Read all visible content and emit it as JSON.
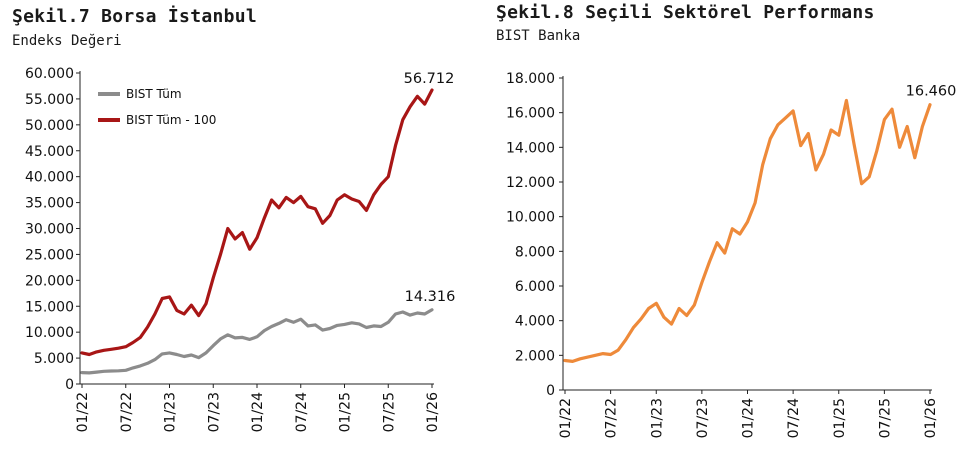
{
  "left": {
    "title": "Şekil.7 Borsa İstanbul",
    "subtitle": "Endeks Değeri"
  },
  "right": {
    "title": "Şekil.8 Seçili Sektörel Performans",
    "subtitle": "BIST Banka"
  },
  "chart_data": [
    {
      "type": "line",
      "title": "Şekil.7 Borsa İstanbul",
      "subtitle": "Endeks Değeri",
      "ylim": [
        0,
        60000
      ],
      "yticks": [
        "60.000",
        "55.000",
        "50.000",
        "45.000",
        "40.000",
        "35.000",
        "30.000",
        "25.000",
        "20.000",
        "15.000",
        "10.000",
        "5.000",
        "0"
      ],
      "xticks": [
        "01/22",
        "07/22",
        "01/23",
        "07/23",
        "01/24",
        "07/24",
        "01/25",
        "07/25",
        "01/26"
      ],
      "legend_position": "top-left",
      "grid": false,
      "annotations": [
        {
          "text": "56.712",
          "series": "BIST Tüm - 100"
        },
        {
          "text": "14.316",
          "series": "BIST Tüm"
        }
      ],
      "series": [
        {
          "name": "BIST Tüm",
          "color": "#8c8c8c",
          "points": [
            [
              "2022-01",
              2200
            ],
            [
              "2022-02",
              2150
            ],
            [
              "2022-03",
              2300
            ],
            [
              "2022-04",
              2450
            ],
            [
              "2022-05",
              2500
            ],
            [
              "2022-06",
              2550
            ],
            [
              "2022-07",
              2650
            ],
            [
              "2022-08",
              3100
            ],
            [
              "2022-09",
              3500
            ],
            [
              "2022-10",
              4000
            ],
            [
              "2022-11",
              4700
            ],
            [
              "2022-12",
              5800
            ],
            [
              "2023-01",
              6000
            ],
            [
              "2023-02",
              5700
            ],
            [
              "2023-03",
              5300
            ],
            [
              "2023-04",
              5600
            ],
            [
              "2023-05",
              5100
            ],
            [
              "2023-06",
              6000
            ],
            [
              "2023-07",
              7400
            ],
            [
              "2023-08",
              8700
            ],
            [
              "2023-09",
              9500
            ],
            [
              "2023-10",
              8900
            ],
            [
              "2023-11",
              9000
            ],
            [
              "2023-12",
              8600
            ],
            [
              "2024-01",
              9100
            ],
            [
              "2024-02",
              10300
            ],
            [
              "2024-03",
              11100
            ],
            [
              "2024-04",
              11700
            ],
            [
              "2024-05",
              12400
            ],
            [
              "2024-06",
              11900
            ],
            [
              "2024-07",
              12500
            ],
            [
              "2024-08",
              11200
            ],
            [
              "2024-09",
              11400
            ],
            [
              "2024-10",
              10400
            ],
            [
              "2024-11",
              10700
            ],
            [
              "2024-12",
              11300
            ],
            [
              "2025-01",
              11500
            ],
            [
              "2025-02",
              11800
            ],
            [
              "2025-03",
              11600
            ],
            [
              "2025-04",
              10900
            ],
            [
              "2025-05",
              11200
            ],
            [
              "2025-06",
              11100
            ],
            [
              "2025-07",
              11900
            ],
            [
              "2025-08",
              13500
            ],
            [
              "2025-09",
              13900
            ],
            [
              "2025-10",
              13300
            ],
            [
              "2025-11",
              13700
            ],
            [
              "2025-12",
              13500
            ],
            [
              "2026-01",
              14316
            ]
          ]
        },
        {
          "name": "BIST Tüm - 100",
          "color": "#a81616",
          "points": [
            [
              "2022-01",
              6000
            ],
            [
              "2022-02",
              5700
            ],
            [
              "2022-03",
              6200
            ],
            [
              "2022-04",
              6500
            ],
            [
              "2022-05",
              6700
            ],
            [
              "2022-06",
              6900
            ],
            [
              "2022-07",
              7200
            ],
            [
              "2022-08",
              8000
            ],
            [
              "2022-09",
              9000
            ],
            [
              "2022-10",
              11000
            ],
            [
              "2022-11",
              13500
            ],
            [
              "2022-12",
              16500
            ],
            [
              "2023-01",
              16800
            ],
            [
              "2023-02",
              14200
            ],
            [
              "2023-03",
              13500
            ],
            [
              "2023-04",
              15200
            ],
            [
              "2023-05",
              13200
            ],
            [
              "2023-06",
              15500
            ],
            [
              "2023-07",
              20500
            ],
            [
              "2023-08",
              25000
            ],
            [
              "2023-09",
              30000
            ],
            [
              "2023-10",
              28000
            ],
            [
              "2023-11",
              29200
            ],
            [
              "2023-12",
              26000
            ],
            [
              "2024-01",
              28200
            ],
            [
              "2024-02",
              32000
            ],
            [
              "2024-03",
              35500
            ],
            [
              "2024-04",
              34000
            ],
            [
              "2024-05",
              36000
            ],
            [
              "2024-06",
              35000
            ],
            [
              "2024-07",
              36200
            ],
            [
              "2024-08",
              34200
            ],
            [
              "2024-09",
              33800
            ],
            [
              "2024-10",
              31000
            ],
            [
              "2024-11",
              32500
            ],
            [
              "2024-12",
              35500
            ],
            [
              "2025-01",
              36500
            ],
            [
              "2025-02",
              35700
            ],
            [
              "2025-03",
              35200
            ],
            [
              "2025-04",
              33500
            ],
            [
              "2025-05",
              36500
            ],
            [
              "2025-06",
              38500
            ],
            [
              "2025-07",
              40000
            ],
            [
              "2025-08",
              46000
            ],
            [
              "2025-09",
              51000
            ],
            [
              "2025-10",
              53500
            ],
            [
              "2025-11",
              55500
            ],
            [
              "2025-12",
              54000
            ],
            [
              "2026-01",
              56712
            ]
          ]
        }
      ]
    },
    {
      "type": "line",
      "title": "Şekil.8 Seçili Sektörel Performans",
      "subtitle": "BIST Banka",
      "ylim": [
        0,
        18000
      ],
      "yticks": [
        "18.000",
        "16.000",
        "14.000",
        "12.000",
        "10.000",
        "8.000",
        "6.000",
        "4.000",
        "2.000",
        "0"
      ],
      "xticks": [
        "01/22",
        "07/22",
        "01/23",
        "07/23",
        "01/24",
        "07/24",
        "01/25",
        "07/25",
        "01/26"
      ],
      "grid": false,
      "annotations": [
        {
          "text": "16.460",
          "series": "BIST Banka"
        }
      ],
      "series": [
        {
          "name": "BIST Banka",
          "color": "#ee8a3a",
          "points": [
            [
              "2022-01",
              1700
            ],
            [
              "2022-02",
              1650
            ],
            [
              "2022-03",
              1800
            ],
            [
              "2022-04",
              1900
            ],
            [
              "2022-05",
              2000
            ],
            [
              "2022-06",
              2100
            ],
            [
              "2022-07",
              2050
            ],
            [
              "2022-08",
              2300
            ],
            [
              "2022-09",
              2900
            ],
            [
              "2022-10",
              3600
            ],
            [
              "2022-11",
              4100
            ],
            [
              "2022-12",
              4700
            ],
            [
              "2023-01",
              5000
            ],
            [
              "2023-02",
              4200
            ],
            [
              "2023-03",
              3800
            ],
            [
              "2023-04",
              4700
            ],
            [
              "2023-05",
              4300
            ],
            [
              "2023-06",
              4900
            ],
            [
              "2023-07",
              6200
            ],
            [
              "2023-08",
              7400
            ],
            [
              "2023-09",
              8500
            ],
            [
              "2023-10",
              7900
            ],
            [
              "2023-11",
              9300
            ],
            [
              "2023-12",
              9000
            ],
            [
              "2024-01",
              9700
            ],
            [
              "2024-02",
              10800
            ],
            [
              "2024-03",
              13000
            ],
            [
              "2024-04",
              14500
            ],
            [
              "2024-05",
              15300
            ],
            [
              "2024-06",
              15700
            ],
            [
              "2024-07",
              16100
            ],
            [
              "2024-08",
              14100
            ],
            [
              "2024-09",
              14800
            ],
            [
              "2024-10",
              12700
            ],
            [
              "2024-11",
              13600
            ],
            [
              "2024-12",
              15000
            ],
            [
              "2025-01",
              14700
            ],
            [
              "2025-02",
              16700
            ],
            [
              "2025-03",
              14200
            ],
            [
              "2025-04",
              11900
            ],
            [
              "2025-05",
              12300
            ],
            [
              "2025-06",
              13800
            ],
            [
              "2025-07",
              15600
            ],
            [
              "2025-08",
              16200
            ],
            [
              "2025-09",
              14000
            ],
            [
              "2025-10",
              15200
            ],
            [
              "2025-11",
              13400
            ],
            [
              "2025-12",
              15200
            ],
            [
              "2026-01",
              16460
            ]
          ]
        }
      ]
    }
  ]
}
